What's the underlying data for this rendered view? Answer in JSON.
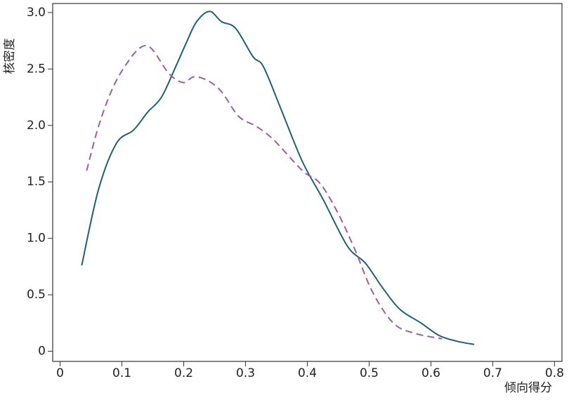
{
  "chart_data": {
    "type": "line",
    "xlabel": "倾向得分",
    "ylabel": "核密度",
    "xlim": [
      -0.012,
      0.812
    ],
    "ylim": [
      -0.09,
      3.08
    ],
    "xticks": [
      0,
      0.1,
      0.2,
      0.3,
      0.4,
      0.5,
      0.6,
      0.7,
      0.8
    ],
    "yticks": [
      0,
      0.5,
      {
        "value": 1,
        "label": "1.0"
      },
      1.5,
      {
        "value": 2,
        "label": "2.0"
      },
      2.5,
      {
        "value": 3,
        "label": "3.0"
      }
    ],
    "series": [
      {
        "color": "#1f5f7a",
        "dashed": false,
        "x": [
          0.035,
          0.062,
          0.091,
          0.119,
          0.142,
          0.164,
          0.187,
          0.204,
          0.221,
          0.242,
          0.261,
          0.284,
          0.312,
          0.329,
          0.357,
          0.392,
          0.426,
          0.465,
          0.494,
          0.522,
          0.55,
          0.584,
          0.613,
          0.641,
          0.67
        ],
        "values": [
          0.76,
          1.43,
          1.84,
          1.96,
          2.12,
          2.25,
          2.52,
          2.73,
          2.92,
          3.01,
          2.92,
          2.86,
          2.61,
          2.52,
          2.15,
          1.68,
          1.34,
          0.93,
          0.78,
          0.56,
          0.37,
          0.25,
          0.14,
          0.09,
          0.06
        ]
      },
      {
        "color": "#a05aa8",
        "dashed": true,
        "x": [
          0.043,
          0.062,
          0.085,
          0.108,
          0.13,
          0.148,
          0.176,
          0.199,
          0.216,
          0.238,
          0.261,
          0.289,
          0.318,
          0.346,
          0.392,
          0.42,
          0.448,
          0.477,
          0.505,
          0.539,
          0.573,
          0.618
        ],
        "values": [
          1.6,
          1.99,
          2.33,
          2.55,
          2.69,
          2.68,
          2.46,
          2.38,
          2.43,
          2.4,
          2.3,
          2.08,
          1.99,
          1.87,
          1.6,
          1.49,
          1.24,
          0.9,
          0.53,
          0.25,
          0.16,
          0.11
        ]
      }
    ]
  }
}
